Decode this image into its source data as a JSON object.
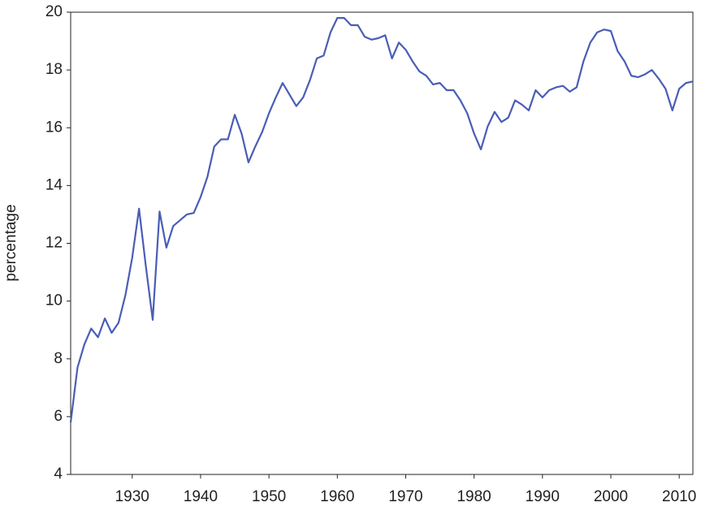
{
  "chart_data": {
    "type": "line",
    "y_label": "percentage",
    "x": [
      1921,
      1922,
      1923,
      1924,
      1925,
      1926,
      1927,
      1928,
      1929,
      1930,
      1931,
      1932,
      1933,
      1934,
      1935,
      1936,
      1937,
      1938,
      1939,
      1940,
      1941,
      1942,
      1943,
      1944,
      1945,
      1946,
      1947,
      1948,
      1949,
      1950,
      1951,
      1952,
      1953,
      1954,
      1955,
      1956,
      1957,
      1958,
      1959,
      1960,
      1961,
      1962,
      1963,
      1964,
      1965,
      1966,
      1967,
      1968,
      1969,
      1970,
      1971,
      1972,
      1973,
      1974,
      1975,
      1976,
      1977,
      1978,
      1979,
      1980,
      1981,
      1982,
      1983,
      1984,
      1985,
      1986,
      1987,
      1988,
      1989,
      1990,
      1991,
      1992,
      1993,
      1994,
      1995,
      1996,
      1997,
      1998,
      1999,
      2000,
      2001,
      2002,
      2003,
      2004,
      2005,
      2006,
      2007,
      2008,
      2009,
      2010,
      2011,
      2012
    ],
    "series": [
      {
        "color": "#4a5db5",
        "values": [
          5.8,
          7.7,
          8.5,
          9.05,
          8.75,
          9.4,
          8.9,
          9.25,
          10.2,
          11.5,
          13.2,
          11.2,
          9.35,
          13.1,
          11.85,
          12.6,
          12.8,
          13.0,
          13.05,
          13.6,
          14.3,
          15.35,
          15.6,
          15.6,
          16.45,
          15.8,
          14.8,
          15.35,
          15.85,
          16.5,
          17.05,
          17.55,
          17.15,
          16.75,
          17.05,
          17.65,
          18.4,
          18.5,
          19.3,
          19.8,
          19.8,
          19.55,
          19.55,
          19.15,
          19.05,
          19.1,
          19.2,
          18.4,
          18.95,
          18.7,
          18.3,
          17.95,
          17.8,
          17.5,
          17.55,
          17.3,
          17.3,
          16.95,
          16.5,
          15.8,
          15.25,
          16.05,
          16.55,
          16.2,
          16.35,
          16.95,
          16.8,
          16.6,
          17.3,
          17.05,
          17.3,
          17.4,
          17.45,
          17.25,
          17.4,
          18.3,
          18.95,
          19.3,
          19.4,
          19.35,
          18.65,
          18.3,
          17.8,
          17.75,
          17.85,
          18.0,
          17.7,
          17.35,
          16.6,
          17.35,
          17.55,
          17.6
        ]
      }
    ],
    "xlim": [
      1921,
      2012
    ],
    "xticks": [
      1930,
      1940,
      1950,
      1960,
      1970,
      1980,
      1990,
      2000,
      2010
    ],
    "ylim": [
      4,
      20
    ],
    "yticks": [
      4,
      6,
      8,
      10,
      12,
      14,
      16,
      18,
      20
    ]
  }
}
